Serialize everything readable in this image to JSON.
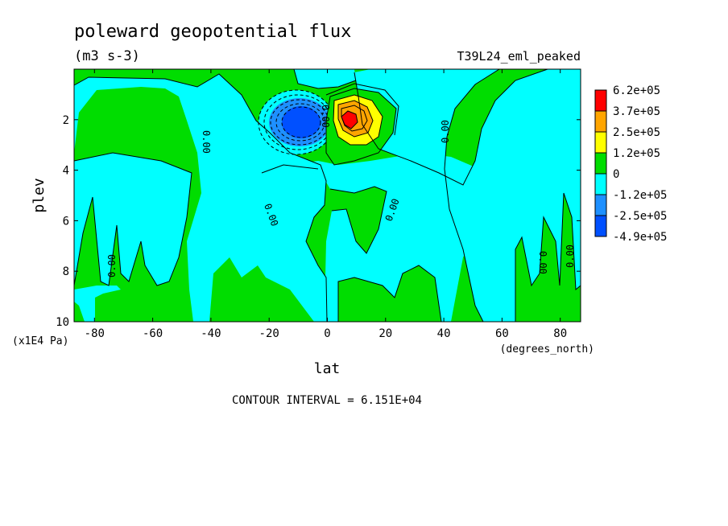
{
  "chart_data": {
    "type": "heatmap",
    "title": "poleward geopotential flux",
    "units": "(m3 s-3)",
    "dataset": "T39L24_eml_peaked",
    "xlabel": "lat",
    "x_units": "(degrees_north)",
    "ylabel": "plev",
    "y_units": "(x1E4 Pa)",
    "xlim": [
      -87,
      87
    ],
    "ylim": [
      10,
      0
    ],
    "y_axis_inverted": true,
    "x_ticks": [
      -80,
      -60,
      -40,
      -20,
      0,
      20,
      40,
      60,
      80
    ],
    "y_ticks": [
      2,
      4,
      6,
      8,
      10
    ],
    "footer": "CONTOUR INTERVAL = 6.151E+04",
    "contour_interval": 61510,
    "legend_position": "right",
    "legend": [
      {
        "label": "6.2e+05",
        "color": "#ff0000"
      },
      {
        "label": "3.7e+05",
        "color": "#ffa500"
      },
      {
        "label": "2.5e+05",
        "color": "#ffff00"
      },
      {
        "label": "1.2e+05",
        "color": "#00dd00"
      },
      {
        "label": "0",
        "color": "#00ffff"
      },
      {
        "label": "-1.2e+05",
        "color": "#1e90ff"
      },
      {
        "label": "-2.5e+05",
        "color": "#0050ff"
      },
      {
        "label": "-4.9e+05",
        "color": "#0050ff"
      }
    ],
    "contour_labels": [
      {
        "text": "0.00",
        "lat": -49,
        "plev": 2.4
      },
      {
        "text": "0.00",
        "lat": 1,
        "plev": 1.4
      },
      {
        "text": "0.00",
        "lat": 40,
        "plev": 2.6
      },
      {
        "text": "0.00",
        "lat": -22,
        "plev": 6.0
      },
      {
        "text": "0.00",
        "lat": 21,
        "plev": 5.8
      },
      {
        "text": "0.00",
        "lat": -75,
        "plev": 8.0
      },
      {
        "text": "0.00",
        "lat": 73,
        "plev": 8.0
      },
      {
        "text": "0.00",
        "lat": 82,
        "plev": 7.5
      }
    ],
    "features": [
      {
        "type": "min",
        "lat": -10,
        "plev": 2.1,
        "approx_value": -490000
      },
      {
        "type": "max",
        "lat": 7,
        "plev": 2.1,
        "approx_value": 620000
      }
    ]
  }
}
